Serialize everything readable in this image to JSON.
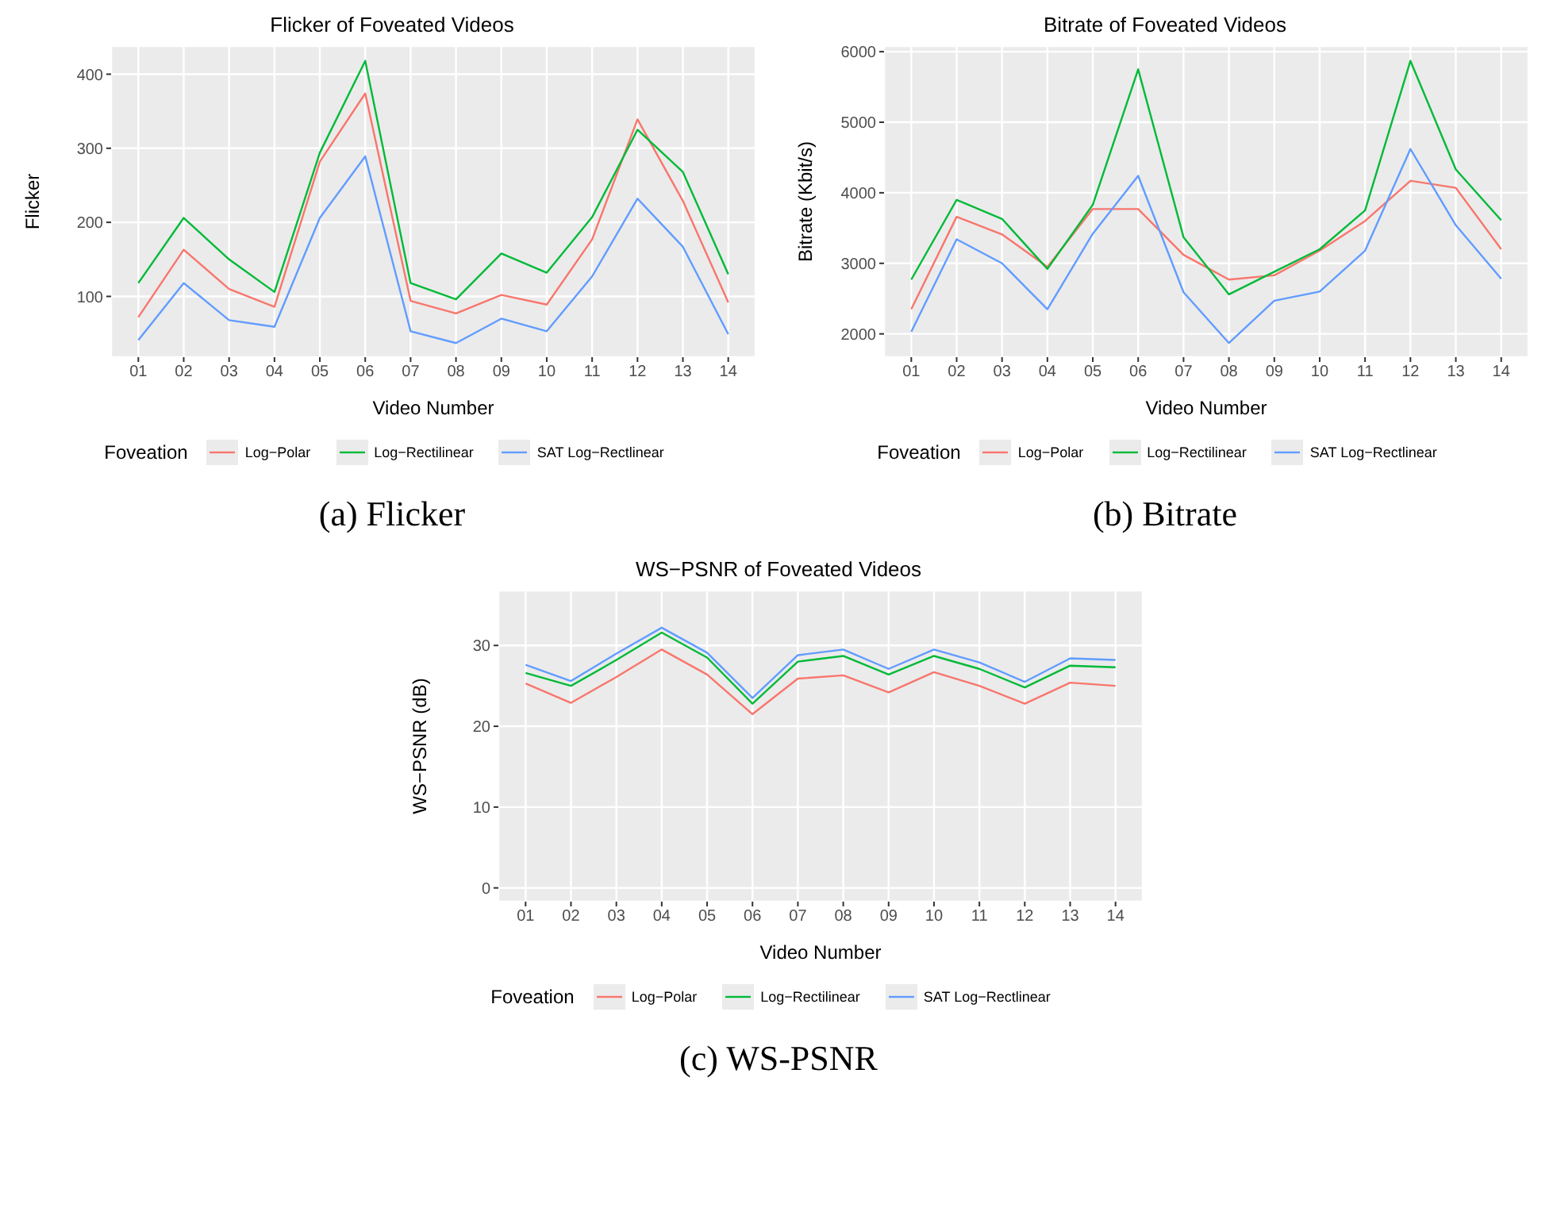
{
  "chart_data": [
    {
      "type": "line",
      "title": "Flicker of Foveated Videos",
      "xlabel": "Video Number",
      "ylabel": "Flicker",
      "legend_title": "Foveation",
      "legend": "bottom",
      "grid": true,
      "categories": [
        "01",
        "02",
        "03",
        "04",
        "05",
        "06",
        "07",
        "08",
        "09",
        "10",
        "11",
        "12",
        "13",
        "14"
      ],
      "ylim": [
        18,
        438
      ],
      "yticks": [
        100,
        200,
        300,
        400
      ],
      "series": [
        {
          "name": "Log−Polar",
          "color": "#f8766d",
          "values": [
            72,
            163,
            110,
            86,
            282,
            374,
            94,
            77,
            102,
            89,
            177,
            339,
            229,
            92
          ]
        },
        {
          "name": "Log−Rectilinear",
          "color": "#00ba38",
          "values": [
            118,
            206,
            150,
            106,
            294,
            418,
            118,
            96,
            158,
            132,
            207,
            325,
            268,
            130
          ]
        },
        {
          "name": "SAT Log−Rectlinear",
          "color": "#619cff",
          "values": [
            41,
            118,
            68,
            59,
            206,
            289,
            53,
            37,
            70,
            53,
            127,
            232,
            167,
            49
          ]
        }
      ],
      "annotations": [
        "(a) Flicker"
      ]
    },
    {
      "type": "line",
      "title": "Bitrate of Foveated Videos",
      "xlabel": "Video Number",
      "ylabel": "Bitrate (Kbit/s)",
      "legend_title": "Foveation",
      "legend": "bottom",
      "grid": true,
      "categories": [
        "01",
        "02",
        "03",
        "04",
        "05",
        "06",
        "07",
        "08",
        "09",
        "10",
        "11",
        "12",
        "13",
        "14"
      ],
      "ylim": [
        1670,
        6080
      ],
      "yticks": [
        2000,
        3000,
        4000,
        5000,
        6000
      ],
      "series": [
        {
          "name": "Log−Polar",
          "color": "#f8766d",
          "values": [
            2350,
            3660,
            3410,
            2950,
            3770,
            3770,
            3120,
            2770,
            2830,
            3180,
            3600,
            4170,
            4070,
            3200
          ]
        },
        {
          "name": "Log−Rectilinear",
          "color": "#00ba38",
          "values": [
            2770,
            3900,
            3630,
            2920,
            3830,
            5750,
            3370,
            2560,
            2880,
            3200,
            3750,
            5870,
            4330,
            3610
          ]
        },
        {
          "name": "SAT Log−Rectlinear",
          "color": "#619cff",
          "values": [
            2030,
            3340,
            3000,
            2350,
            3420,
            4240,
            2590,
            1870,
            2470,
            2600,
            3180,
            4620,
            3540,
            2780
          ]
        }
      ],
      "annotations": [
        "(b) Bitrate"
      ]
    },
    {
      "type": "line",
      "title": "WS−PSNR of Foveated Videos",
      "xlabel": "Video Number",
      "ylabel": "WS−PSNR (dB)",
      "legend_title": "Foveation",
      "legend": "bottom",
      "grid": true,
      "categories": [
        "01",
        "02",
        "03",
        "04",
        "05",
        "06",
        "07",
        "08",
        "09",
        "10",
        "11",
        "12",
        "13",
        "14"
      ],
      "ylim": [
        -1.7,
        36.8
      ],
      "yticks": [
        0,
        10,
        20,
        30
      ],
      "series": [
        {
          "name": "Log−Polar",
          "color": "#f8766d",
          "values": [
            25.3,
            22.9,
            26.1,
            29.5,
            26.4,
            21.5,
            25.9,
            26.3,
            24.2,
            26.7,
            25.0,
            22.8,
            25.4,
            25.0
          ]
        },
        {
          "name": "Log−Rectilinear",
          "color": "#00ba38",
          "values": [
            26.6,
            25.0,
            28.2,
            31.6,
            28.5,
            22.8,
            28.0,
            28.7,
            26.4,
            28.7,
            27.1,
            24.8,
            27.5,
            27.3
          ]
        },
        {
          "name": "SAT Log−Rectlinear",
          "color": "#619cff",
          "values": [
            27.6,
            25.6,
            29.0,
            32.2,
            29.1,
            23.5,
            28.8,
            29.5,
            27.1,
            29.5,
            27.9,
            25.5,
            28.4,
            28.2
          ]
        }
      ],
      "annotations": [
        "(c) WS-PSNR"
      ]
    }
  ]
}
